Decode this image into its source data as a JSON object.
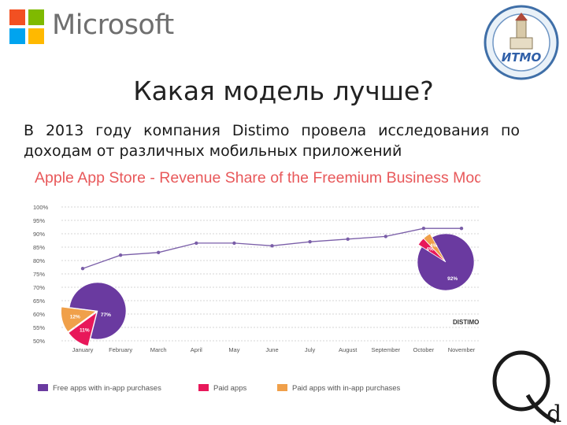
{
  "header": {
    "brand_text": "Microsoft",
    "ms_colors": [
      "#f25022",
      "#7fba00",
      "#00a4ef",
      "#ffb900"
    ],
    "university_logo_text": "ИТМО"
  },
  "slide": {
    "title": "Какая модель лучше?",
    "subtitle": "В 2013 году компания Distimo провела исследования по доходам от различных мобильных приложений"
  },
  "colors": {
    "title": "#e8585a",
    "line": "#7a5ea8",
    "free": "#6a3aa0",
    "paid": "#e8185a",
    "paid_iap": "#f0a04a"
  },
  "chart_data": {
    "type": "line",
    "title": "Apple App Store - Revenue Share of the Freemium Business Mode",
    "categories": [
      "January",
      "February",
      "March",
      "April",
      "May",
      "June",
      "July",
      "August",
      "September",
      "October",
      "November"
    ],
    "series": [
      {
        "values": [
          77,
          82,
          83,
          86.5,
          86.5,
          85.5,
          87,
          88,
          89,
          92,
          92
        ]
      }
    ],
    "ylim": [
      50,
      100
    ],
    "yticks": [
      "50%",
      "55%",
      "60%",
      "65%",
      "70%",
      "75%",
      "80%",
      "85%",
      "90%",
      "95%",
      "100%"
    ],
    "grid": true,
    "source_logo": "DISTIMO",
    "pies": [
      {
        "position": "january",
        "slices": [
          {
            "series": "Free apps with in-app purchases",
            "value": 77,
            "label": "77%"
          },
          {
            "series": "Paid apps",
            "value": 11,
            "label": "11%"
          },
          {
            "series": "Paid apps with in-app purchases",
            "value": 12,
            "label": "12%"
          }
        ]
      },
      {
        "position": "november",
        "slices": [
          {
            "series": "Free apps with in-app purchases",
            "value": 92,
            "label": "92%"
          },
          {
            "series": "Paid apps",
            "value": 4,
            "label": "4%"
          },
          {
            "series": "Paid apps with in-app purchases",
            "value": 4,
            "label": "4%"
          }
        ]
      }
    ],
    "legend": [
      {
        "label": "Free apps with in-app purchases",
        "color": "#6a3aa0"
      },
      {
        "label": "Paid apps",
        "color": "#e8185a"
      },
      {
        "label": "Paid apps with in-app purchases",
        "color": "#f0a04a"
      }
    ],
    "legend_position": "bottom"
  },
  "footer": {
    "logo_text": "Qd"
  }
}
